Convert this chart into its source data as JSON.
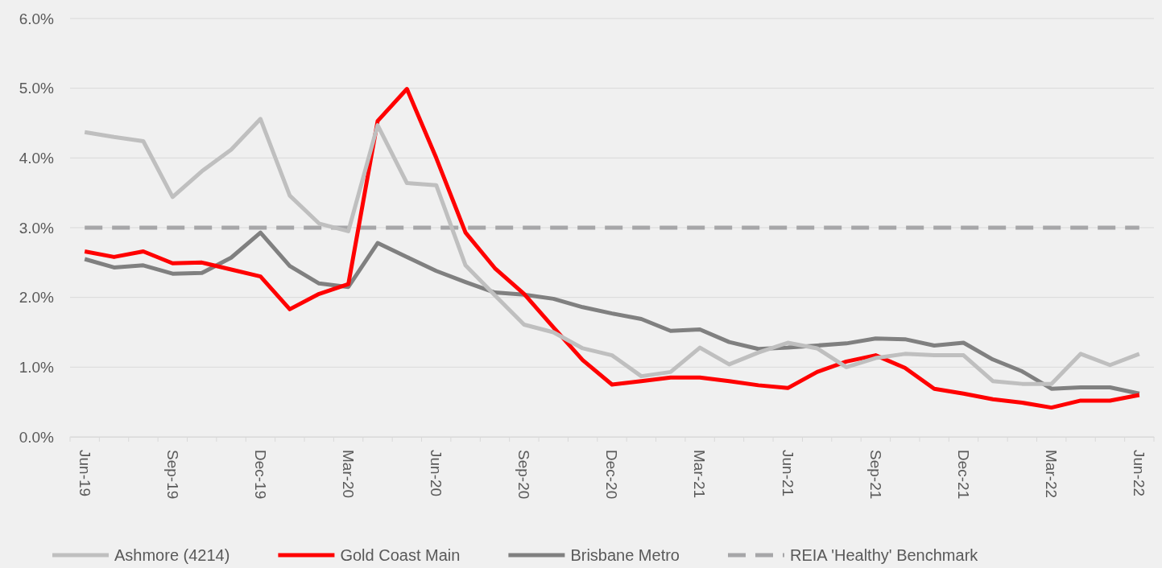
{
  "chart_data": {
    "type": "line",
    "categories": [
      "Jun-19",
      null,
      null,
      "Sep-19",
      null,
      null,
      "Dec-19",
      null,
      null,
      "Mar-20",
      null,
      null,
      "Jun-20",
      null,
      null,
      "Sep-20",
      null,
      null,
      "Dec-20",
      null,
      null,
      "Mar-21",
      null,
      null,
      "Jun-21",
      null,
      null,
      "Sep-21",
      null,
      null,
      "Dec-21",
      null,
      null,
      "Mar-22",
      null,
      null,
      "Jun-22"
    ],
    "series": [
      {
        "name": "Ashmore (4214)",
        "color": "#bfbfbf",
        "values": [
          4.37,
          4.3,
          4.24,
          3.44,
          3.81,
          4.12,
          4.56,
          3.46,
          3.06,
          2.95,
          4.47,
          3.64,
          3.61,
          2.46,
          2.03,
          1.61,
          1.5,
          1.27,
          1.17,
          0.87,
          0.93,
          1.28,
          1.04,
          1.21,
          1.35,
          1.27,
          1.0,
          1.13,
          1.19,
          1.17,
          1.17,
          0.8,
          0.76,
          0.76,
          1.19,
          1.03,
          1.19
        ]
      },
      {
        "name": "Gold Coast Main",
        "color": "#ff0000",
        "values": [
          2.66,
          2.58,
          2.66,
          2.49,
          2.5,
          2.4,
          2.3,
          1.83,
          2.05,
          2.19,
          4.53,
          4.99,
          4.0,
          2.93,
          2.42,
          2.05,
          1.57,
          1.1,
          0.75,
          0.8,
          0.85,
          0.85,
          0.8,
          0.74,
          0.7,
          0.93,
          1.08,
          1.17,
          0.99,
          0.69,
          0.62,
          0.54,
          0.49,
          0.42,
          0.52,
          0.52,
          0.6
        ]
      },
      {
        "name": "Brisbane Metro",
        "color": "#808080",
        "values": [
          2.55,
          2.43,
          2.46,
          2.34,
          2.35,
          2.57,
          2.93,
          2.45,
          2.2,
          2.15,
          2.78,
          2.58,
          2.38,
          2.22,
          2.07,
          2.04,
          1.98,
          1.86,
          1.77,
          1.69,
          1.52,
          1.54,
          1.36,
          1.26,
          1.28,
          1.31,
          1.34,
          1.41,
          1.4,
          1.31,
          1.35,
          1.11,
          0.94,
          0.69,
          0.71,
          0.71,
          0.62
        ]
      },
      {
        "name": "REIA 'Healthy' Benchmark",
        "color": "#a6a6a8",
        "line_style": "dashed",
        "values": [
          3,
          3,
          3,
          3,
          3,
          3,
          3,
          3,
          3,
          3,
          3,
          3,
          3,
          3,
          3,
          3,
          3,
          3,
          3,
          3,
          3,
          3,
          3,
          3,
          3,
          3,
          3,
          3,
          3,
          3,
          3,
          3,
          3,
          3,
          3,
          3,
          3
        ]
      }
    ],
    "ylim": [
      0,
      6
    ],
    "yticks": [
      {
        "value": 0,
        "label": "0.0%"
      },
      {
        "value": 1,
        "label": "1.0%"
      },
      {
        "value": 2,
        "label": "2.0%"
      },
      {
        "value": 3,
        "label": "3.0%"
      },
      {
        "value": 4,
        "label": "4.0%"
      },
      {
        "value": 5,
        "label": "5.0%"
      },
      {
        "value": 6,
        "label": "6.0%"
      }
    ],
    "grid": "y",
    "legend": "bottom",
    "line_style": "solid"
  }
}
